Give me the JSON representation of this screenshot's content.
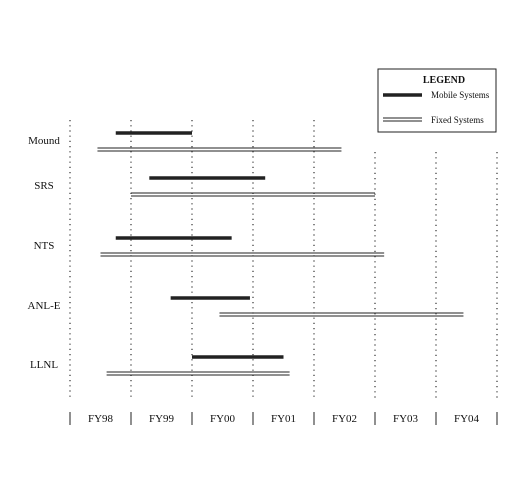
{
  "chart_data": {
    "type": "gantt",
    "title": "",
    "xlabel": "",
    "ylabel": "",
    "categories": [
      "FY98",
      "FY99",
      "FY00",
      "FY01",
      "FY02",
      "FY03",
      "FY04"
    ],
    "x_range": [
      0,
      7
    ],
    "grid": "vertical dotted",
    "legend": {
      "title": "LEGEND",
      "placement": "top-right",
      "items": [
        {
          "label": "Mobile Systems",
          "style": "thick"
        },
        {
          "label": "Fixed Systems",
          "style": "double"
        }
      ]
    },
    "rows": [
      {
        "label": "Mound",
        "mobile": [
          0.75,
          2.0
        ],
        "fixed": [
          0.45,
          4.45
        ]
      },
      {
        "label": "SRS",
        "mobile": [
          1.3,
          3.2
        ],
        "fixed": [
          1.0,
          5.0
        ]
      },
      {
        "label": "NTS",
        "mobile": [
          0.75,
          2.65
        ],
        "fixed": [
          0.5,
          5.15
        ]
      },
      {
        "label": "ANL-E",
        "mobile": [
          1.65,
          2.95
        ],
        "fixed": [
          2.45,
          6.45
        ]
      },
      {
        "label": "LLNL",
        "mobile": [
          2.0,
          3.5
        ],
        "fixed": [
          0.6,
          3.6
        ]
      }
    ],
    "colors": {
      "bar": "#222222",
      "grid": "#333333",
      "text": "#111111"
    }
  }
}
